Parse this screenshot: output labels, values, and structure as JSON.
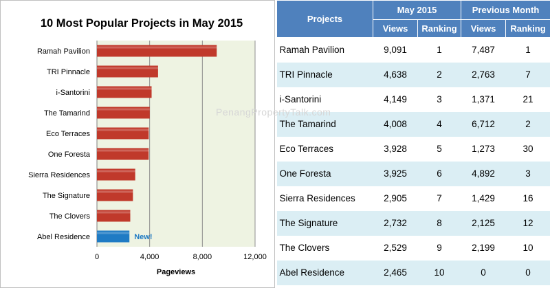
{
  "chart_data": {
    "type": "bar",
    "orientation": "horizontal",
    "title": "10 Most Popular Projects in May 2015",
    "xlabel": "Pageviews",
    "ylabel": "",
    "xlim": [
      0,
      12000
    ],
    "xticks": [
      0,
      4000,
      8000,
      12000
    ],
    "xtick_labels": [
      "0",
      "4,000",
      "8,000",
      "12,000"
    ],
    "grid": true,
    "categories": [
      "Ramah Pavilion",
      "TRI Pinnacle",
      "i-Santorini",
      "The Tamarind",
      "Eco Terraces",
      "One Foresta",
      "Sierra Residences",
      "The Signature",
      "The Clovers",
      "Abel Residence"
    ],
    "values": [
      9091,
      4638,
      4149,
      4008,
      3928,
      3925,
      2905,
      2732,
      2529,
      2465
    ],
    "bar_color": "#c0392b",
    "highlight_color": "#1f7bc4",
    "plot_background": "#eef3e2",
    "annotation": {
      "category": "Abel Residence",
      "text": "New!"
    }
  },
  "watermark": "PenangPropertyTalk.com",
  "table": {
    "projects_header": "Projects",
    "group_current": "May 2015",
    "group_previous": "Previous Month",
    "sub_views": "Views",
    "sub_ranking": "Ranking",
    "rows": [
      {
        "project": "Ramah Pavilion",
        "views": "9,091",
        "rank": "1",
        "prev_views": "7,487",
        "prev_rank": "1"
      },
      {
        "project": "TRI Pinnacle",
        "views": "4,638",
        "rank": "2",
        "prev_views": "2,763",
        "prev_rank": "7"
      },
      {
        "project": "i-Santorini",
        "views": "4,149",
        "rank": "3",
        "prev_views": "1,371",
        "prev_rank": "21"
      },
      {
        "project": "The Tamarind",
        "views": "4,008",
        "rank": "4",
        "prev_views": "6,712",
        "prev_rank": "2"
      },
      {
        "project": "Eco Terraces",
        "views": "3,928",
        "rank": "5",
        "prev_views": "1,273",
        "prev_rank": "30"
      },
      {
        "project": "One Foresta",
        "views": "3,925",
        "rank": "6",
        "prev_views": "4,892",
        "prev_rank": "3"
      },
      {
        "project": "Sierra Residences",
        "views": "2,905",
        "rank": "7",
        "prev_views": "1,429",
        "prev_rank": "16"
      },
      {
        "project": "The Signature",
        "views": "2,732",
        "rank": "8",
        "prev_views": "2,125",
        "prev_rank": "12"
      },
      {
        "project": "The Clovers",
        "views": "2,529",
        "rank": "9",
        "prev_views": "2,199",
        "prev_rank": "10"
      },
      {
        "project": "Abel Residence",
        "views": "2,465",
        "rank": "10",
        "prev_views": "0",
        "prev_rank": "0"
      }
    ]
  }
}
